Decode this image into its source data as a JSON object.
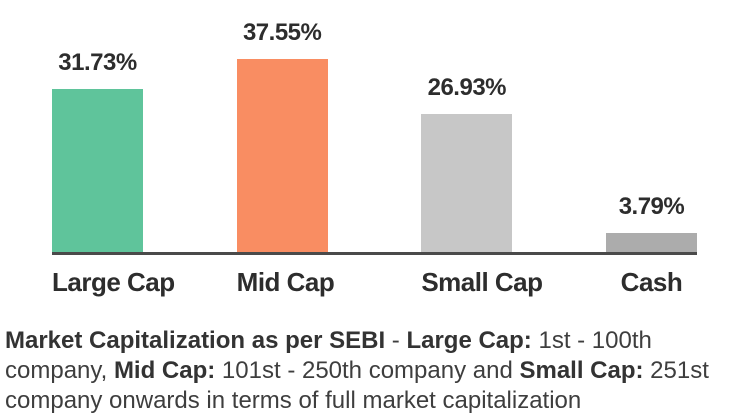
{
  "chart_data": {
    "type": "bar",
    "categories": [
      "Large Cap",
      "Mid Cap",
      "Small Cap",
      "Cash"
    ],
    "values": [
      31.73,
      37.55,
      26.93,
      3.79
    ],
    "value_labels": [
      "31.73%",
      "37.55%",
      "26.93%",
      "3.79%"
    ],
    "bar_colors": [
      "#5FC49B",
      "#F98D62",
      "#C7C7C7",
      "#ACACAC"
    ],
    "title": "",
    "xlabel": "",
    "ylabel": "",
    "ylim": [
      0,
      40
    ],
    "grid": false,
    "legend": false,
    "axis_color": "#4A4A4A"
  },
  "caption": {
    "lines": [
      [
        {
          "text": "Market Capitalization as per SEBI",
          "bold": true
        },
        {
          "text": " - ",
          "bold": false
        },
        {
          "text": "Large Cap:",
          "bold": true
        },
        {
          "text": " 1st - 100th",
          "bold": false
        }
      ],
      [
        {
          "text": "company, ",
          "bold": false
        },
        {
          "text": "Mid Cap:",
          "bold": true
        },
        {
          "text": " 101st - 250th company and ",
          "bold": false
        },
        {
          "text": "Small Cap:",
          "bold": true
        },
        {
          "text": " 251st",
          "bold": false
        }
      ],
      [
        {
          "text": "company onwards in terms of full market capitalization",
          "bold": false
        }
      ]
    ]
  },
  "colors": {
    "background": "#FFFFFF",
    "axis": "#4A4A4A",
    "value_label": "#2D2D2D",
    "category_label": "#2D2D2D",
    "caption_text": "#3E3E3E"
  }
}
